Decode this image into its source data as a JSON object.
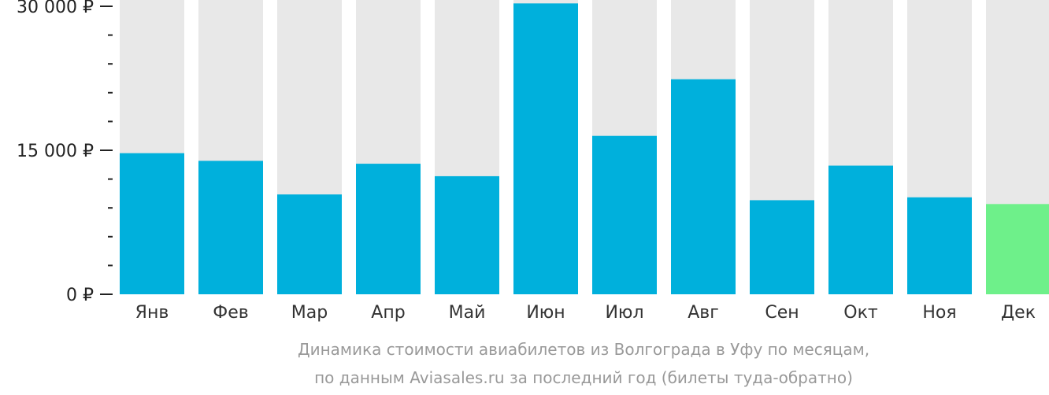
{
  "chart_data": {
    "type": "bar",
    "categories": [
      "Янв",
      "Фев",
      "Мар",
      "Апр",
      "Май",
      "Июн",
      "Июл",
      "Авг",
      "Сен",
      "Окт",
      "Ноя",
      "Дек"
    ],
    "values": [
      14700,
      13900,
      10400,
      13600,
      12300,
      30300,
      16500,
      22400,
      9800,
      13400,
      10100,
      9400
    ],
    "ylim": [
      0,
      30000
    ],
    "y_ticks": [
      {
        "value": 0,
        "label": "0 ₽"
      },
      {
        "value": 15000,
        "label": "15 000 ₽"
      },
      {
        "value": 30000,
        "label": "30 000 ₽"
      }
    ],
    "minor_tick_step": 3000,
    "caption_lines": [
      "Динамика стоимости авиабилетов из Волгограда в Уфу по месяцам,",
      "по данным Aviasales.ru за последний год (билеты туда-обратно)"
    ],
    "colors": {
      "bar": "#00b0dc",
      "highlight_bar": "#6ef08a",
      "background_bar": "#e8e8e8",
      "axis": "#222222",
      "caption": "#999999"
    },
    "highlight_index": 11,
    "grid": false,
    "legend": "none"
  }
}
